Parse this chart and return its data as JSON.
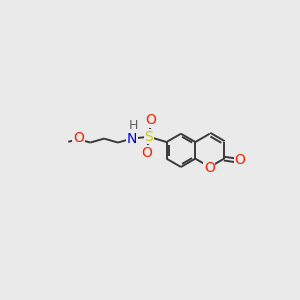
{
  "bg_color": "#eaeaea",
  "bond_color": "#3a3a3a",
  "bond_width": 1.4,
  "double_sep": 0.09,
  "atom_colors": {
    "O": "#ff2200",
    "N": "#0000ee",
    "S": "#cccc00",
    "H": "#606060",
    "C": "#3a3a3a"
  },
  "font_size": 9.5,
  "figsize": [
    3.0,
    3.0
  ],
  "dpi": 100,
  "xlim": [
    0,
    10
  ],
  "ylim": [
    0,
    10
  ],
  "bl": 0.72
}
